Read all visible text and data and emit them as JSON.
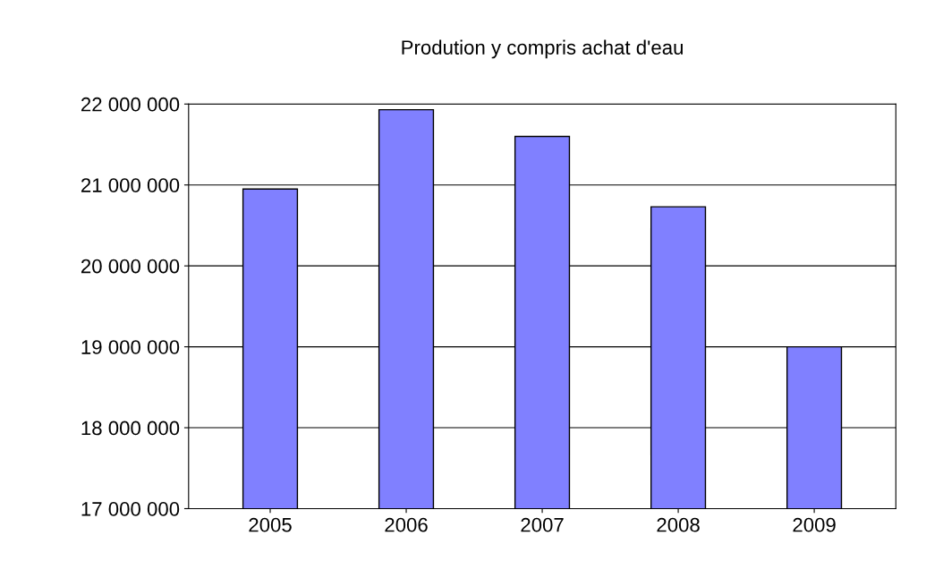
{
  "chart_data": {
    "type": "bar",
    "title": "Prodution y compris achat d'eau",
    "categories": [
      "2005",
      "2006",
      "2007",
      "2008",
      "2009"
    ],
    "values": [
      20950000,
      21930000,
      21600000,
      20730000,
      19000000
    ],
    "color": "#8080ff",
    "ylim": [
      17000000,
      22000000
    ],
    "yticks": [
      {
        "value": 17000000,
        "label": "17 000 000"
      },
      {
        "value": 18000000,
        "label": "18 000 000"
      },
      {
        "value": 19000000,
        "label": "19 000 000"
      },
      {
        "value": 20000000,
        "label": "20 000 000"
      },
      {
        "value": 21000000,
        "label": "21 000 000"
      },
      {
        "value": 22000000,
        "label": "22 000 000"
      }
    ],
    "grid": "y",
    "legend": false
  }
}
